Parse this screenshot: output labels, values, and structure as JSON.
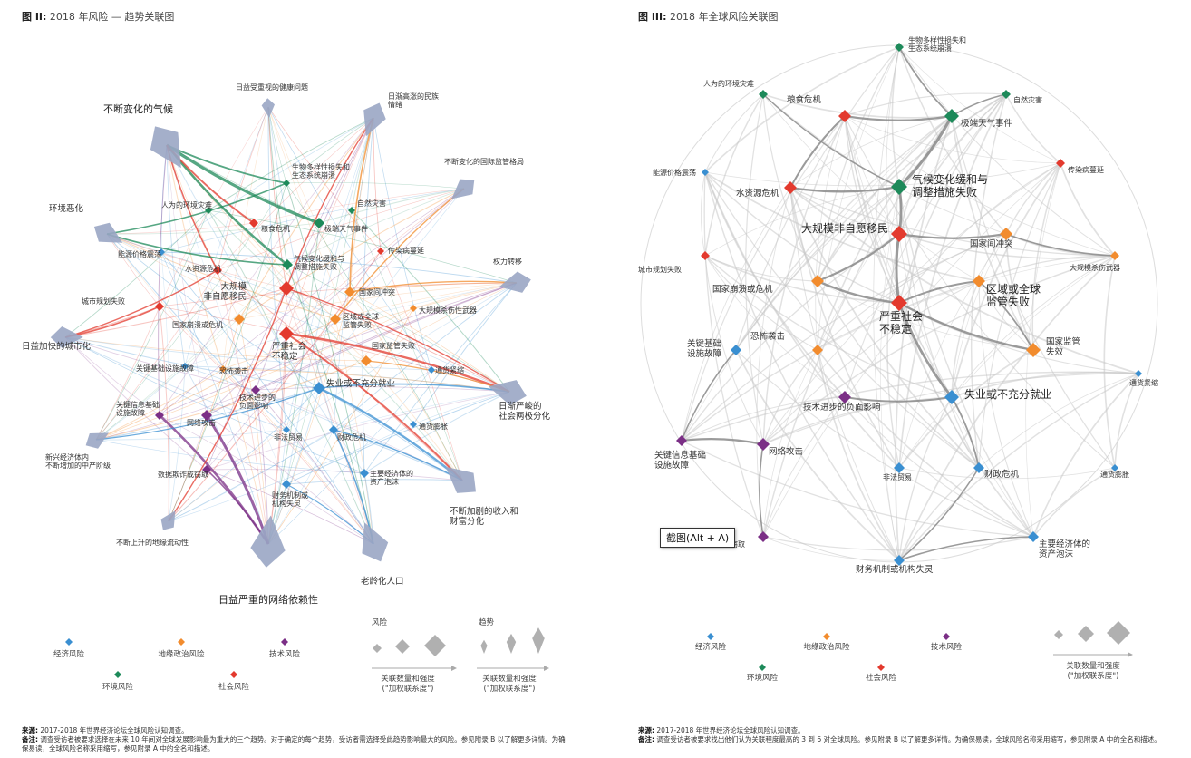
{
  "left": {
    "title_prefix": "图 II:",
    "title": "2018 年风险 — 趋势关联图",
    "trends": [
      {
        "id": "t_aging_low",
        "label": "日益严重的网络依赖性"
      },
      {
        "id": "t_climate",
        "label": "不断变化的气候"
      },
      {
        "id": "t_env",
        "label": "环境恶化"
      },
      {
        "id": "t_urban",
        "label": "日益加快的城市化"
      },
      {
        "id": "t_mid",
        "label": "新兴经济体内\n不断增加的中产阶级"
      },
      {
        "id": "t_geo",
        "label": "不断上升的地缘流动性"
      },
      {
        "id": "t_health",
        "label": "日益受重视的健康问题"
      },
      {
        "id": "t_nation",
        "label": "日渐高涨的民族\n情绪"
      },
      {
        "id": "t_gov",
        "label": "不断变化的国际监管格局"
      },
      {
        "id": "t_power",
        "label": "权力转移"
      },
      {
        "id": "t_polar",
        "label": "日渐严峻的\n社会两极分化"
      },
      {
        "id": "t_income",
        "label": "不断加剧的收入和\n财富分化"
      },
      {
        "id": "t_oldage",
        "label": "老龄化人口"
      }
    ],
    "risks": [
      {
        "id": "bio",
        "label": "生物多样性损失和\n生态系统崩溃",
        "cat": "env"
      },
      {
        "id": "manmade",
        "label": "人为的环境灾难",
        "cat": "env"
      },
      {
        "id": "natural",
        "label": "自然灾害",
        "cat": "env"
      },
      {
        "id": "food",
        "label": "粮食危机",
        "cat": "soc"
      },
      {
        "id": "extreme",
        "label": "极端天气事件",
        "cat": "env"
      },
      {
        "id": "energy",
        "label": "能源价格震荡",
        "cat": "eco"
      },
      {
        "id": "infect",
        "label": "传染病蔓延",
        "cat": "soc"
      },
      {
        "id": "water",
        "label": "水资源危机",
        "cat": "soc"
      },
      {
        "id": "climatefail",
        "label": "气候变化缓和与\n调整措施失败",
        "cat": "env"
      },
      {
        "id": "migration",
        "label": "大规模\n非自愿移民",
        "cat": "soc"
      },
      {
        "id": "conflict",
        "label": "国家间冲突",
        "cat": "geo"
      },
      {
        "id": "urbanfail",
        "label": "城市规划失败",
        "cat": "soc"
      },
      {
        "id": "wmd",
        "label": "大规模杀伤性武器",
        "cat": "geo"
      },
      {
        "id": "collapse",
        "label": "国家崩溃或危机",
        "cat": "geo"
      },
      {
        "id": "regional",
        "label": "区域或全球\n监管失败",
        "cat": "geo"
      },
      {
        "id": "instab",
        "label": "严重社会\n不稳定",
        "cat": "soc"
      },
      {
        "id": "govfail",
        "label": "国家监管失败",
        "cat": "geo"
      },
      {
        "id": "infra",
        "label": "关键基础设施故障",
        "cat": "eco"
      },
      {
        "id": "terror",
        "label": "恐怖袭击",
        "cat": "geo"
      },
      {
        "id": "deflation",
        "label": "通货紧缩",
        "cat": "eco"
      },
      {
        "id": "tech",
        "label": "技术进步的\n负面影响",
        "cat": "tec"
      },
      {
        "id": "unemp",
        "label": "失业或不充分就业",
        "cat": "eco"
      },
      {
        "id": "infoinfra",
        "label": "关键信息基础\n设施故障",
        "cat": "tec"
      },
      {
        "id": "cyber",
        "label": "网络攻击",
        "cat": "tec"
      },
      {
        "id": "illicit",
        "label": "非法贸易",
        "cat": "eco"
      },
      {
        "id": "fiscal",
        "label": "财政危机",
        "cat": "eco"
      },
      {
        "id": "inflation",
        "label": "通货膨胀",
        "cat": "eco"
      },
      {
        "id": "datafraud",
        "label": "数据欺诈或窃取",
        "cat": "tec"
      },
      {
        "id": "asset",
        "label": "主要经济体的\n资产泡沫",
        "cat": "eco"
      },
      {
        "id": "finance",
        "label": "财务机制或\n机构失灵",
        "cat": "eco"
      }
    ],
    "legend": {
      "categories": [
        {
          "key": "eco",
          "label": "经济风险"
        },
        {
          "key": "geo",
          "label": "地缘政治风险"
        },
        {
          "key": "tec",
          "label": "技术风险"
        },
        {
          "key": "env",
          "label": "环境风险"
        },
        {
          "key": "soc",
          "label": "社会风险"
        }
      ],
      "risk_heading": "风险",
      "trend_heading": "趋势",
      "risk_caption": "关联数量和强度\n(\"加权联系度\")",
      "trend_caption": "关联数量和强度\n(\"加权联系度\")"
    },
    "source_label": "来源:",
    "source_text": "2017-2018 年世界经济论坛全球风险认知调查。",
    "note_label": "备注:",
    "note_text": "调查受访者被要求选择在未来 10 年间对全球发展影响最为重大的三个趋势。对于确定的每个趋势，受访者需选择受此趋势影响最大的风险。参见附录 B 以了解更多详情。为确保易读，全球风险名称采用缩写，参见附录 A 中的全名和描述。"
  },
  "right": {
    "title_prefix": "图 III:",
    "title": "2018 年全球风险关联图",
    "risks": [
      {
        "id": "bio",
        "label": "生物多样性损失和\n生态系统崩溃",
        "cat": "env"
      },
      {
        "id": "manmade",
        "label": "人为的环境灾难",
        "cat": "env"
      },
      {
        "id": "natural",
        "label": "自然灾害",
        "cat": "env"
      },
      {
        "id": "food",
        "label": "粮食危机",
        "cat": "soc"
      },
      {
        "id": "extreme",
        "label": "极端天气事件",
        "cat": "env"
      },
      {
        "id": "energy",
        "label": "能源价格震荡",
        "cat": "eco"
      },
      {
        "id": "infect",
        "label": "传染病蔓延",
        "cat": "soc"
      },
      {
        "id": "water",
        "label": "水资源危机",
        "cat": "soc"
      },
      {
        "id": "climatefail",
        "label": "气候变化缓和与\n调整措施失败",
        "cat": "env"
      },
      {
        "id": "migration",
        "label": "大规模非自愿移民",
        "cat": "soc"
      },
      {
        "id": "conflict",
        "label": "国家间冲突",
        "cat": "geo"
      },
      {
        "id": "urbanfail",
        "label": "城市规划失败",
        "cat": "soc"
      },
      {
        "id": "wmd",
        "label": "大规模杀伤武器",
        "cat": "geo"
      },
      {
        "id": "collapse",
        "label": "国家崩溃或危机",
        "cat": "geo"
      },
      {
        "id": "regional",
        "label": "区域或全球\n监管失败",
        "cat": "geo"
      },
      {
        "id": "instab",
        "label": "严重社会\n不稳定",
        "cat": "soc"
      },
      {
        "id": "infra",
        "label": "关键基础\n设施故障",
        "cat": "eco"
      },
      {
        "id": "terror",
        "label": "恐怖袭击",
        "cat": "geo"
      },
      {
        "id": "govfail",
        "label": "国家监管\n失效",
        "cat": "geo"
      },
      {
        "id": "deflation",
        "label": "通货紧缩",
        "cat": "eco"
      },
      {
        "id": "tech",
        "label": "技术进步的负面影响",
        "cat": "tec"
      },
      {
        "id": "unemp",
        "label": "失业或不充分就业",
        "cat": "eco"
      },
      {
        "id": "infoinfra",
        "label": "关键信息基础\n设施故障",
        "cat": "tec"
      },
      {
        "id": "cyber",
        "label": "网络攻击",
        "cat": "tec"
      },
      {
        "id": "illicit",
        "label": "非法贸易",
        "cat": "eco"
      },
      {
        "id": "fiscal",
        "label": "财政危机",
        "cat": "eco"
      },
      {
        "id": "inflation",
        "label": "通货膨胀",
        "cat": "eco"
      },
      {
        "id": "datafraud",
        "label": "数据欺诈或窃取",
        "cat": "tec"
      },
      {
        "id": "asset",
        "label": "主要经济体的\n资产泡沫",
        "cat": "eco"
      },
      {
        "id": "finance",
        "label": "财务机制或机构失灵",
        "cat": "eco"
      }
    ],
    "legend": {
      "categories": [
        {
          "key": "eco",
          "label": "经济风险"
        },
        {
          "key": "geo",
          "label": "地缘政治风险"
        },
        {
          "key": "tec",
          "label": "技术风险"
        },
        {
          "key": "env",
          "label": "环境风险"
        },
        {
          "key": "soc",
          "label": "社会风险"
        }
      ],
      "caption": "关联数量和强度\n(\"加权联系度\")"
    },
    "source_label": "来源:",
    "source_text": "2017-2018 年世界经济论坛全球风险认知调查。",
    "note_label": "备注:",
    "note_text": "调查受访者被要求找出他们认为关联程度最高的 3 到 6 对全球风险。参见附录 B 以了解更多详情。为确保易读，全球风险名称采用缩写，参见附录 A 中的全名和描述。"
  },
  "tooltip": "截图(Alt + A)",
  "colors": {
    "eco": "#3a8fd1",
    "geo": "#f28c2e",
    "tec": "#7b2f86",
    "env": "#1d8a5a",
    "soc": "#e33a2e",
    "trend": "#9aa6c4",
    "edge": "#bbbbbb"
  }
}
